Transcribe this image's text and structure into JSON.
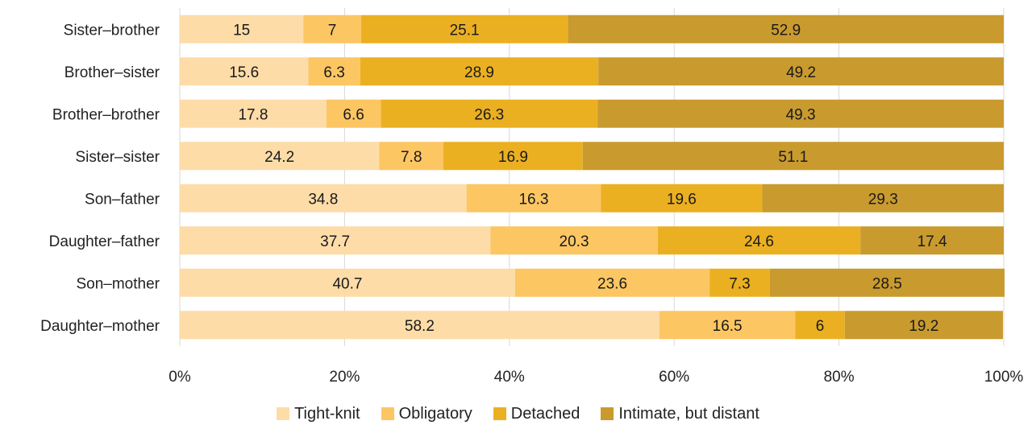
{
  "chart_data": {
    "type": "bar",
    "orientation": "horizontal",
    "stacked": "100%",
    "categories": [
      "Sister–brother",
      "Brother–sister",
      "Brother–brother",
      "Sister–sister",
      "Son–father",
      "Daughter–father",
      "Son–mother",
      "Daughter–mother"
    ],
    "series": [
      {
        "name": "Tight-knit",
        "color": "#FDDCA8",
        "values": [
          15,
          15.6,
          17.8,
          24.2,
          34.8,
          37.7,
          40.7,
          58.2
        ]
      },
      {
        "name": "Obligatory",
        "color": "#FCC663",
        "values": [
          7,
          6.3,
          6.6,
          7.8,
          16.3,
          20.3,
          23.6,
          16.5
        ]
      },
      {
        "name": "Detached",
        "color": "#EBB021",
        "values": [
          25.1,
          28.9,
          26.3,
          16.9,
          19.6,
          24.6,
          7.3,
          6
        ]
      },
      {
        "name": "Intimate, but distant",
        "color": "#C99A2E",
        "values": [
          52.9,
          49.2,
          49.3,
          51.1,
          29.3,
          17.4,
          28.5,
          19.2
        ]
      }
    ],
    "x_ticks": [
      "0%",
      "20%",
      "40%",
      "60%",
      "80%",
      "100%"
    ],
    "xlim": [
      0,
      100
    ],
    "grid": true,
    "legend_position": "bottom"
  }
}
